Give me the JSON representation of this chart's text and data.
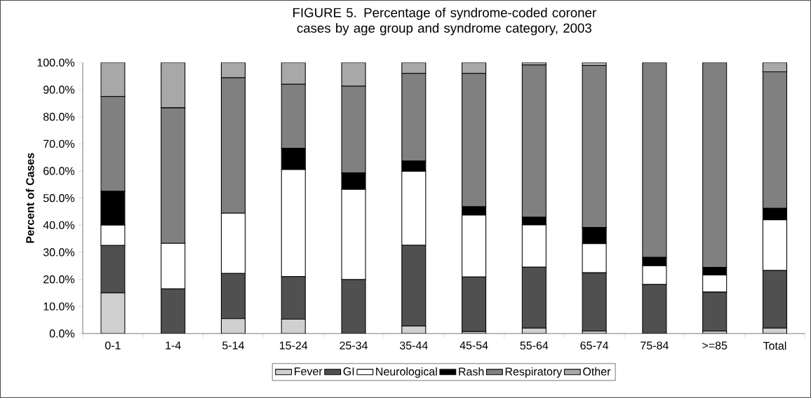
{
  "chart_data": {
    "type": "bar",
    "stacked": true,
    "title": "FIGURE 5. Percentage of syndrome-coded coroner cases by age group and syndrome category, 2003",
    "ylabel": "Percent of Cases",
    "categories": [
      "0-1",
      "1-4",
      "5-14",
      "15-24",
      "25-34",
      "35-44",
      "45-54",
      "55-64",
      "65-74",
      "75-84",
      ">=85",
      "Total"
    ],
    "series": [
      {
        "name": "Fever",
        "color": "#d0d0d0",
        "values": [
          15,
          0,
          5.5,
          5.3,
          0,
          2.8,
          0.7,
          2.0,
          0.9,
          0,
          0.9,
          2.0
        ]
      },
      {
        "name": "GI",
        "color": "#505050",
        "values": [
          17.5,
          16.5,
          16.7,
          15.7,
          19.9,
          29.8,
          20.2,
          22.5,
          21.5,
          18.1,
          14.4,
          21.3
        ]
      },
      {
        "name": "Neurological",
        "color": "#ffffff",
        "values": [
          7.5,
          16.8,
          22.2,
          39.5,
          33.3,
          27.3,
          22.8,
          15.6,
          10.8,
          6.9,
          6.3,
          18.7
        ]
      },
      {
        "name": "Rash",
        "color": "#000000",
        "values": [
          12.5,
          0,
          0,
          7.9,
          6.1,
          3.8,
          3.1,
          2.8,
          6.0,
          3.1,
          2.8,
          4.2
        ]
      },
      {
        "name": "Respiratory",
        "color": "#808080",
        "values": [
          35,
          50,
          50,
          23.6,
          32.0,
          32.3,
          49.2,
          56.2,
          59.7,
          71.9,
          75.6,
          50.4
        ]
      },
      {
        "name": "Other",
        "color": "#a8a8a8",
        "values": [
          12.5,
          16.7,
          5.6,
          8.0,
          8.7,
          4.0,
          4.0,
          0.9,
          1.1,
          0,
          0,
          3.4
        ]
      }
    ],
    "ylim": [
      0,
      100
    ],
    "yticks": [
      {
        "value": 0,
        "label": "0.0%"
      },
      {
        "value": 10,
        "label": "10.0%"
      },
      {
        "value": 20,
        "label": "20.0%"
      },
      {
        "value": 30,
        "label": "30.0%"
      },
      {
        "value": 40,
        "label": "40.0%"
      },
      {
        "value": 50,
        "label": "50.0%"
      },
      {
        "value": 60,
        "label": "60.0%"
      },
      {
        "value": 70,
        "label": "70.0%"
      },
      {
        "value": 80,
        "label": "80.0%"
      },
      {
        "value": 90,
        "label": "90.0%"
      },
      {
        "value": 100,
        "label": "100.0%"
      }
    ],
    "legend": "bottom"
  }
}
